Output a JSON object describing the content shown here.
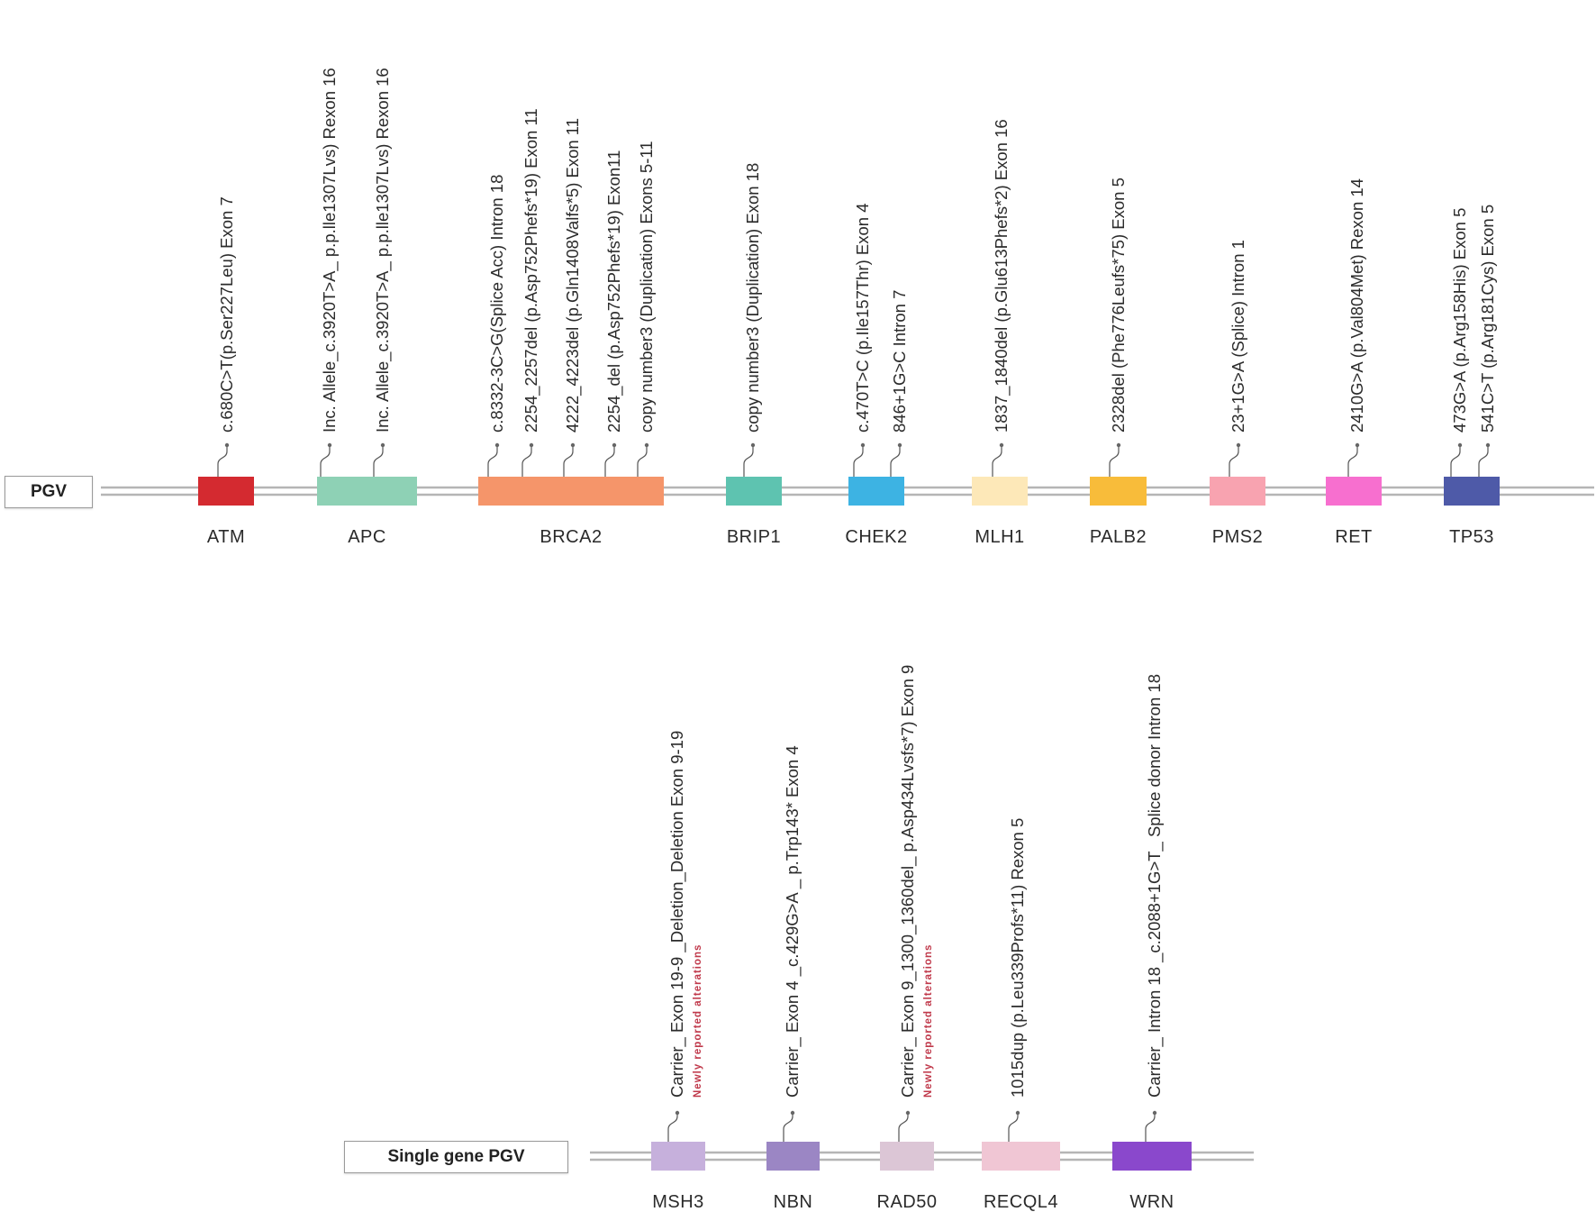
{
  "rows": [
    {
      "label": "PGV",
      "genes": [
        {
          "name": "ATM",
          "color": "#d42a30",
          "variants": [
            "c.680C>T(p.Ser227Leu) Exon 7"
          ]
        },
        {
          "name": "APC",
          "color": "#8ed1b5",
          "variants": [
            "Inc. Allele_c.3920T>A_ p.p.lle1307Lvs) Rexon 16",
            "Inc. Allele_c.3920T>A_ p.p.lle1307Lvs) Rexon 16"
          ]
        },
        {
          "name": "BRCA2",
          "color": "#f5956a",
          "variants": [
            "c.8332-3C>G(Splice Acc) Intron 18",
            "2254_2257del (p.Asp752Phefs*19) Exon 11",
            "4222_4223del (p.Gln1408Valfs*5) Exon 11",
            "2254_del (p.Asp752Phefs*19) Exon11",
            "copy number3 (Duplication) Exons 5-11"
          ]
        },
        {
          "name": "BRIP1",
          "color": "#5ec3b0",
          "variants": [
            "copy number3 (Duplication) Exon 18"
          ]
        },
        {
          "name": "CHEK2",
          "color": "#3db3e3",
          "variants": [
            "c.470T>C (p.Ile157Thr) Exon 4",
            "846+1G>C Intron 7"
          ]
        },
        {
          "name": "MLH1",
          "color": "#fde8b8",
          "variants": [
            "1837_1840del (p.Glu613Phefs*2) Exon 16"
          ]
        },
        {
          "name": "PALB2",
          "color": "#f8bc3a",
          "variants": [
            "2328del (Phe776Leufs*75) Exon 5"
          ]
        },
        {
          "name": "PMS2",
          "color": "#f8a3b0",
          "variants": [
            "23+1G>A (Splice) Intron 1"
          ]
        },
        {
          "name": "RET",
          "color": "#f76fcf",
          "variants": [
            "2410G>A (p.Val804Met) Rexon 14"
          ]
        },
        {
          "name": "TP53",
          "color": "#4e5aa8",
          "variants": [
            "473G>A (p.Arg158His) Exon 5",
            "541C>T (p.Arg181Cys) Exon 5"
          ]
        }
      ]
    },
    {
      "label": "Single gene PGV",
      "genes": [
        {
          "name": "MSH3",
          "color": "#c6b0dc",
          "variants": [
            "Carrier_ Exon 19-9 _Deletion_Deletion Exon 9-19"
          ],
          "note": "Newly reported alterations"
        },
        {
          "name": "NBN",
          "color": "#9b86c4",
          "variants": [
            "Carrier_ Exon 4 _c.429G>A _ p.Trp143* Exon 4"
          ]
        },
        {
          "name": "RAD50",
          "color": "#dcc6d6",
          "variants": [
            "Carrier_ Exon 9_1300_1360del_ p.Asp434Lvsfs*7) Exon 9"
          ],
          "note": "Newly reported alterations"
        },
        {
          "name": "RECQL4",
          "color": "#f0c6d4",
          "variants": [
            "1015dup (p.Leu339Profs*11) Rexon 5"
          ]
        },
        {
          "name": "WRN",
          "color": "#8a48cc",
          "variants": [
            "Carrier_ Intron 18 _c.2088+1G>T_ Splice donor Intron 18"
          ]
        }
      ]
    }
  ]
}
